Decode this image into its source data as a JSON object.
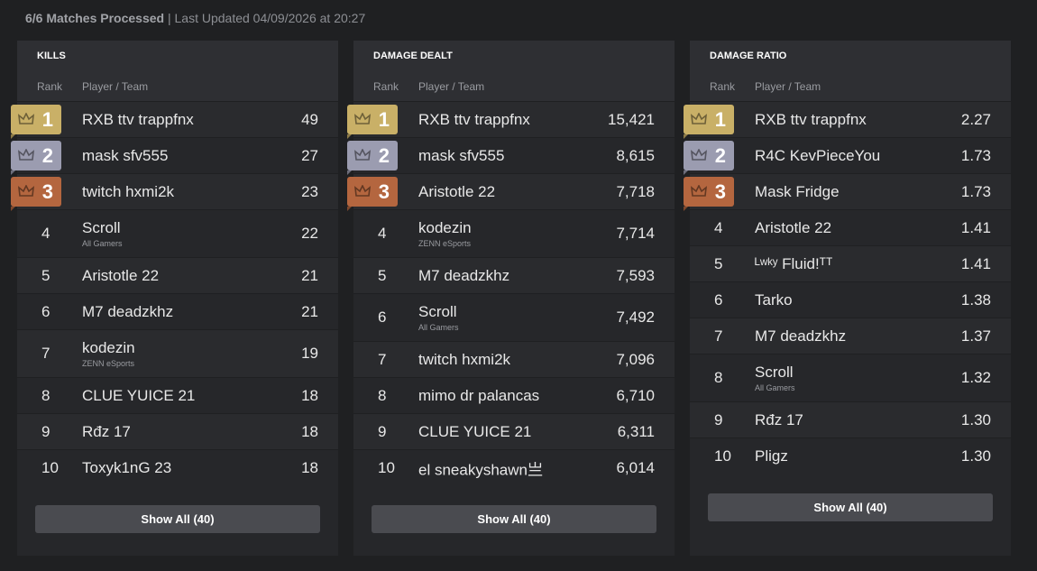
{
  "header": {
    "status": "6/6 Matches Processed",
    "updated": "| Last Updated 04/09/2026 at 20:27"
  },
  "tables": [
    {
      "title": "KILLS",
      "columns": [
        "Rank",
        "Player / Team"
      ],
      "button": "Show All (40)",
      "rows": [
        {
          "rank": "1",
          "player": "RXB ttv trappfnx",
          "value": "49"
        },
        {
          "rank": "2",
          "player": "mask sfv555",
          "value": "27"
        },
        {
          "rank": "3",
          "player": "twitch hxmi2k",
          "value": "23"
        },
        {
          "rank": "4",
          "player": "Scroll",
          "team": "All Gamers",
          "value": "22"
        },
        {
          "rank": "5",
          "player": "Aristotle 22",
          "value": "21"
        },
        {
          "rank": "6",
          "player": "M7 deadzkhz",
          "value": "21"
        },
        {
          "rank": "7",
          "player": "kodezin",
          "team": "ZENN eSports",
          "value": "19"
        },
        {
          "rank": "8",
          "player": "CLUE YUICE 21",
          "value": "18"
        },
        {
          "rank": "9",
          "player": "Rđz 17",
          "value": "18"
        },
        {
          "rank": "10",
          "player": "Toxyk1nG 23",
          "value": "18"
        }
      ]
    },
    {
      "title": "DAMAGE DEALT",
      "columns": [
        "Rank",
        "Player / Team"
      ],
      "button": "Show All (40)",
      "rows": [
        {
          "rank": "1",
          "player": "RXB ttv trappfnx",
          "value": "15,421"
        },
        {
          "rank": "2",
          "player": "mask sfv555",
          "value": "8,615"
        },
        {
          "rank": "3",
          "player": "Aristotle 22",
          "value": "7,718"
        },
        {
          "rank": "4",
          "player": "kodezin",
          "team": "ZENN eSports",
          "value": "7,714"
        },
        {
          "rank": "5",
          "player": "M7 deadzkhz",
          "value": "7,593"
        },
        {
          "rank": "6",
          "player": "Scroll",
          "team": "All Gamers",
          "value": "7,492"
        },
        {
          "rank": "7",
          "player": "twitch hxmi2k",
          "value": "7,096"
        },
        {
          "rank": "8",
          "player": "mimo dr palancas",
          "value": "6,710"
        },
        {
          "rank": "9",
          "player": "CLUE YUICE 21",
          "value": "6,311"
        },
        {
          "rank": "10",
          "player": "el sneakyshawn亗",
          "value": "6,014"
        }
      ]
    },
    {
      "title": "DAMAGE RATIO",
      "columns": [
        "Rank",
        "Player / Team"
      ],
      "button": "Show All (40)",
      "rows": [
        {
          "rank": "1",
          "player": "RXB ttv trappfnx",
          "value": "2.27"
        },
        {
          "rank": "2",
          "player": "R4C KevPieceYou",
          "value": "1.73"
        },
        {
          "rank": "3",
          "player": "Mask Fridge",
          "value": "1.73"
        },
        {
          "rank": "4",
          "player": "Aristotle 22",
          "value": "1.41"
        },
        {
          "rank": "5",
          "player": "ᴸʷᵏʸ Fluid!ᵀᵀ",
          "value": "1.41"
        },
        {
          "rank": "6",
          "player": "Tarko",
          "value": "1.38"
        },
        {
          "rank": "7",
          "player": "M7 deadzkhz",
          "value": "1.37"
        },
        {
          "rank": "8",
          "player": "Scroll",
          "team": "All Gamers",
          "value": "1.32"
        },
        {
          "rank": "9",
          "player": "Rđz 17",
          "value": "1.30"
        },
        {
          "rank": "10",
          "player": "Pligz",
          "value": "1.30"
        }
      ]
    }
  ]
}
